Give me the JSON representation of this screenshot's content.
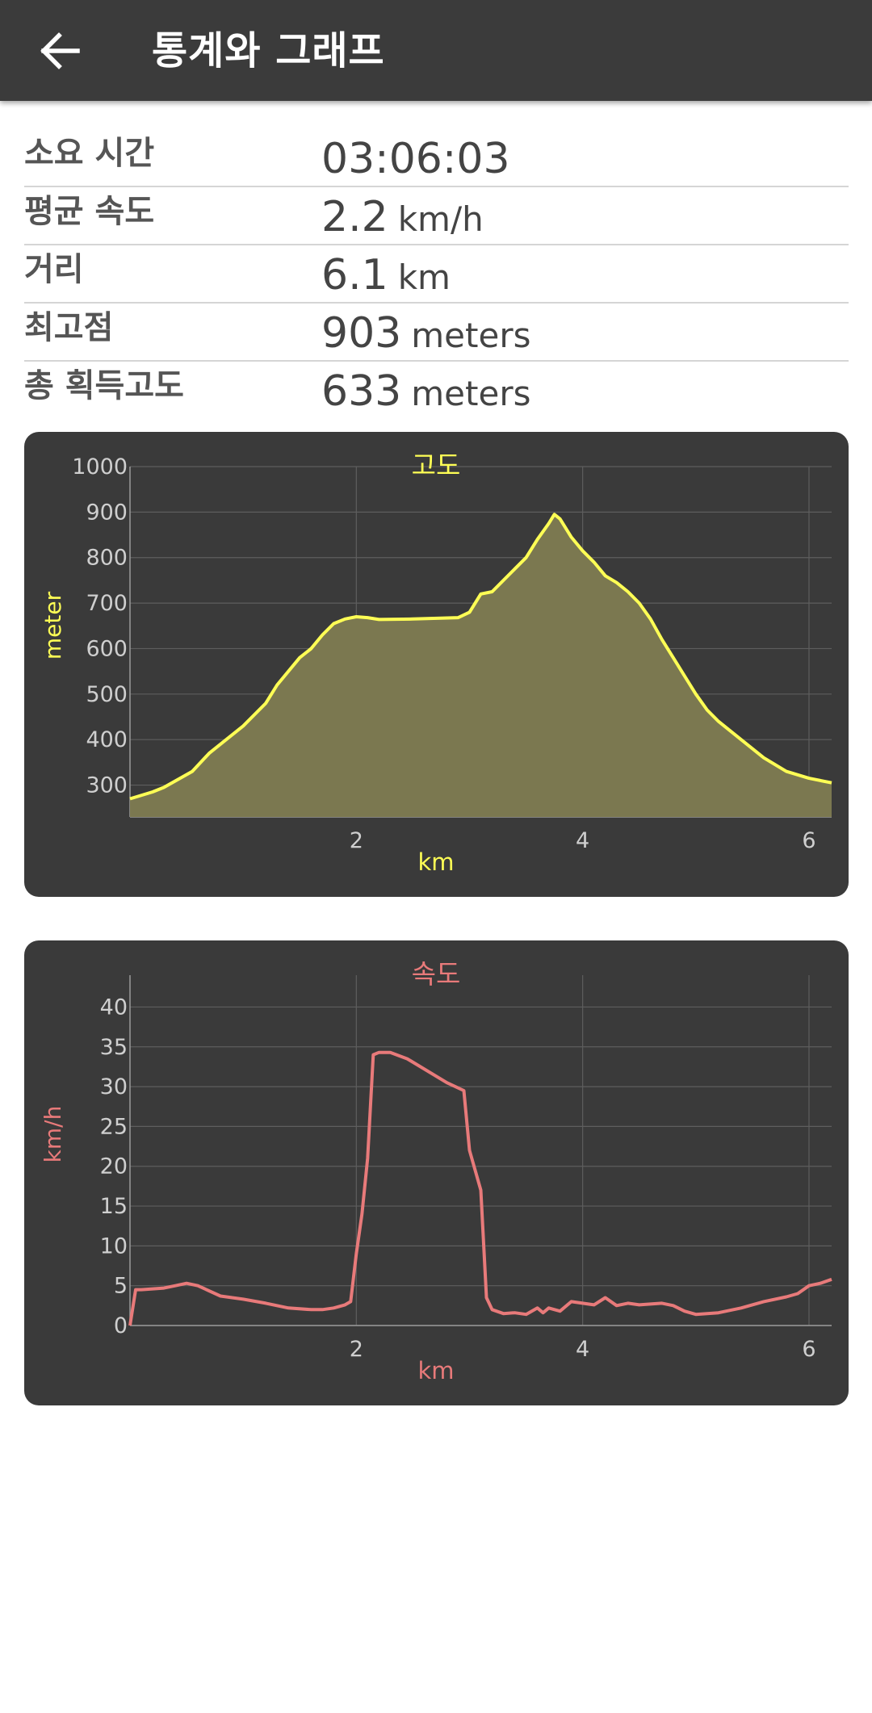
{
  "appbar": {
    "title": "통계와 그래프",
    "back_icon": "arrow-left-icon"
  },
  "stats": [
    {
      "label": "소요 시간",
      "value": "03:06:03",
      "unit": ""
    },
    {
      "label": "평균 속도",
      "value": "2.2",
      "unit": "km/h"
    },
    {
      "label": "거리",
      "value": "6.1",
      "unit": "km"
    },
    {
      "label": "최고점",
      "value": "903",
      "unit": "meters"
    },
    {
      "label": "총 획득고도",
      "value": "633",
      "unit": "meters"
    }
  ],
  "colors": {
    "appbar": "#3b3b3b",
    "card": "#3a3a3a",
    "altitude": "#ffff55",
    "altitude_fill": "#7b7850",
    "speed": "#e87a7a"
  },
  "chart_data": [
    {
      "type": "area",
      "title": "고도",
      "xlabel": "km",
      "ylabel": "meter",
      "xlim": [
        0,
        6.2
      ],
      "ylim": [
        230,
        1000
      ],
      "xticks": [
        "2",
        "4",
        "6"
      ],
      "yticks": [
        "300",
        "400",
        "500",
        "600",
        "700",
        "800",
        "900",
        "1000"
      ],
      "grid": true,
      "x": [
        0,
        0.2,
        0.3,
        0.55,
        0.7,
        1.0,
        1.2,
        1.3,
        1.5,
        1.6,
        1.7,
        1.8,
        1.9,
        2.0,
        2.1,
        2.2,
        2.5,
        2.9,
        3.0,
        3.1,
        3.2,
        3.3,
        3.4,
        3.5,
        3.6,
        3.7,
        3.75,
        3.8,
        3.9,
        4.0,
        4.1,
        4.2,
        4.3,
        4.4,
        4.5,
        4.6,
        4.7,
        4.8,
        4.9,
        5.0,
        5.1,
        5.2,
        5.4,
        5.6,
        5.8,
        6.0,
        6.2
      ],
      "y": [
        270,
        285,
        295,
        330,
        370,
        430,
        480,
        520,
        580,
        600,
        630,
        655,
        665,
        670,
        668,
        664,
        665,
        668,
        680,
        720,
        725,
        750,
        775,
        800,
        840,
        875,
        895,
        885,
        845,
        815,
        790,
        760,
        745,
        725,
        700,
        665,
        620,
        580,
        540,
        500,
        465,
        440,
        400,
        360,
        330,
        315,
        305
      ]
    },
    {
      "type": "line",
      "title": "속도",
      "xlabel": "km",
      "ylabel": "km/h",
      "xlim": [
        0,
        6.2
      ],
      "ylim": [
        0,
        44
      ],
      "xticks": [
        "2",
        "4",
        "6"
      ],
      "yticks": [
        "0",
        "5",
        "10",
        "15",
        "20",
        "25",
        "30",
        "35",
        "40"
      ],
      "grid": true,
      "x": [
        0,
        0.05,
        0.1,
        0.3,
        0.4,
        0.5,
        0.6,
        0.8,
        1.0,
        1.2,
        1.4,
        1.6,
        1.7,
        1.8,
        1.9,
        1.95,
        2.0,
        2.05,
        2.1,
        2.15,
        2.2,
        2.3,
        2.45,
        2.8,
        2.95,
        3.0,
        3.1,
        3.15,
        3.2,
        3.3,
        3.4,
        3.5,
        3.6,
        3.65,
        3.7,
        3.8,
        3.9,
        4.0,
        4.1,
        4.2,
        4.3,
        4.4,
        4.5,
        4.6,
        4.7,
        4.8,
        4.9,
        5.0,
        5.2,
        5.4,
        5.6,
        5.8,
        5.9,
        6.0,
        6.1,
        6.2
      ],
      "y": [
        0,
        4.5,
        4.5,
        4.7,
        5.0,
        5.3,
        5.0,
        3.7,
        3.3,
        2.8,
        2.2,
        2.0,
        2.0,
        2.2,
        2.6,
        3.0,
        9.0,
        14,
        21,
        34,
        34.3,
        34.3,
        33.5,
        30.5,
        29.5,
        22,
        17,
        3.5,
        2.0,
        1.5,
        1.6,
        1.4,
        2.2,
        1.6,
        2.2,
        1.8,
        3.0,
        2.8,
        2.6,
        3.5,
        2.5,
        2.8,
        2.6,
        2.7,
        2.8,
        2.5,
        1.8,
        1.4,
        1.6,
        2.2,
        3.0,
        3.6,
        4.0,
        5.0,
        5.3,
        5.8
      ]
    }
  ]
}
